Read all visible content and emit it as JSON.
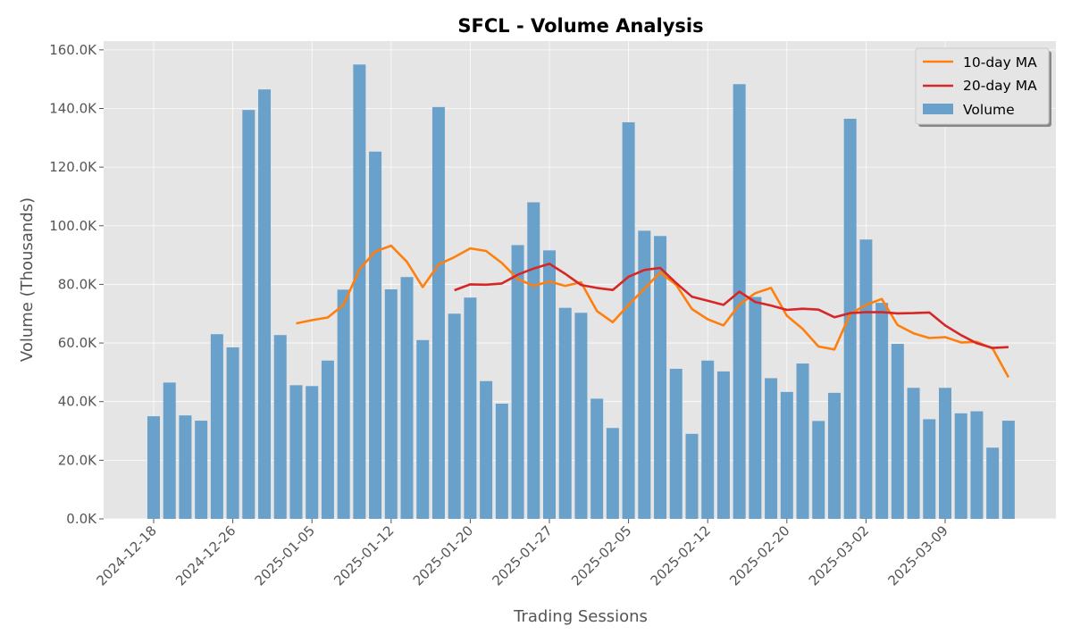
{
  "chart_data": {
    "type": "bar",
    "title": "SFCL - Volume Analysis",
    "xlabel": "Trading Sessions",
    "ylabel": "Volume (Thousands)",
    "ylim": [
      0,
      163000
    ],
    "y_ticks": [
      0,
      20000,
      40000,
      60000,
      80000,
      100000,
      120000,
      140000,
      160000
    ],
    "y_tick_labels": [
      "0.0K",
      "20.0K",
      "40.0K",
      "60.0K",
      "80.0K",
      "100.0K",
      "120.0K",
      "140.0K",
      "160.0K"
    ],
    "x_tick_labels": [
      "2024-12-18",
      "2024-12-26",
      "2025-01-05",
      "2025-01-12",
      "2025-01-20",
      "2025-01-27",
      "2025-02-05",
      "2025-02-12",
      "2025-02-20",
      "2025-03-02",
      "2025-03-09"
    ],
    "x_tick_positions": [
      0,
      5,
      10,
      15,
      20,
      25,
      30,
      35,
      40,
      45,
      50
    ],
    "grid": true,
    "legend_position": "top-right",
    "legend": [
      "10-day MA",
      "20-day MA",
      "Volume"
    ],
    "colors": {
      "volume": "#6aa1cb",
      "ma10": "#ff7f0e",
      "ma20": "#d62728",
      "background": "#e5e5e5",
      "grid": "#ffffff"
    },
    "volume": [
      35000,
      46500,
      35300,
      33500,
      63000,
      58500,
      139500,
      146500,
      62700,
      45600,
      45300,
      54000,
      78200,
      155000,
      125300,
      78300,
      82500,
      61000,
      140500,
      70000,
      75500,
      47000,
      39300,
      93400,
      108000,
      91600,
      72000,
      70300,
      41000,
      31000,
      135300,
      98300,
      96500,
      51200,
      29000,
      54000,
      50300,
      148300,
      75700,
      48000,
      43300,
      53000,
      33400,
      43000,
      136500,
      95300,
      73700,
      59700,
      44700,
      34000,
      44700,
      36000,
      36700,
      24300,
      33500
    ],
    "series": [
      {
        "name": "10-day MA",
        "start_index": 9,
        "values": [
          66700,
          67800,
          68700,
          73000,
          85200,
          91200,
          93200,
          87700,
          79100,
          86800,
          89300,
          92300,
          91400,
          87300,
          81800,
          79500,
          81000,
          79500,
          80700,
          70900,
          67100,
          73000,
          78500,
          84100,
          79900,
          71600,
          68100,
          66000,
          73100,
          77000,
          78800,
          69300,
          64800,
          58800,
          57800,
          69900,
          73000,
          75000,
          66100,
          63300,
          61700,
          62000,
          60200,
          60400,
          58100,
          48300
        ]
      },
      {
        "name": "20-day MA",
        "start_index": 19,
        "values": [
          78000,
          80000,
          79900,
          80300,
          83300,
          85400,
          87000,
          83600,
          79800,
          78800,
          78100,
          82600,
          84900,
          85600,
          80500,
          75800,
          74400,
          73000,
          77500,
          74000,
          72800,
          71300,
          71700,
          71400,
          68800,
          70200,
          70500,
          70500,
          70100,
          70200,
          70400,
          66000,
          62700,
          59900,
          58300,
          58600
        ]
      }
    ]
  }
}
